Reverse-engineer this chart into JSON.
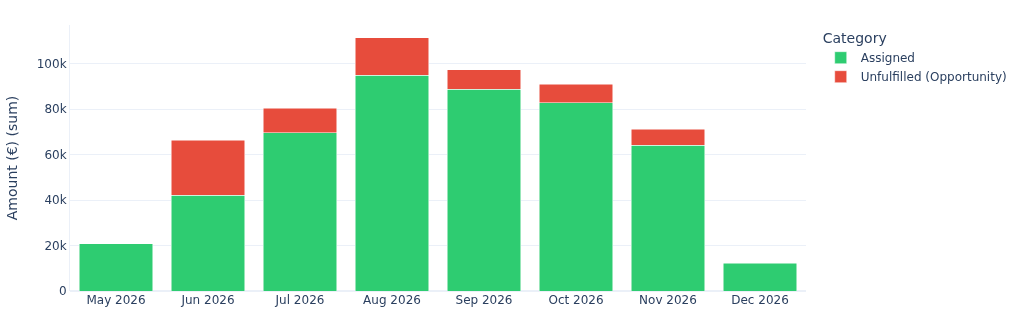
{
  "chart_data": {
    "type": "bar",
    "stacked": true,
    "ylabel": "Amount (€) (sum)",
    "legend_title": "Category",
    "legend": "right",
    "categories": [
      "May 2026",
      "Jun 2026",
      "Jul 2026",
      "Aug 2026",
      "Sep 2026",
      "Oct 2026",
      "Nov 2026",
      "Dec 2026"
    ],
    "series": [
      {
        "name": "Assigned",
        "color": "#2ecc71",
        "values": [
          20800,
          42200,
          69500,
          95000,
          88800,
          82700,
          64200,
          12300
        ]
      },
      {
        "name": "Unfulfilled (Opportunity)",
        "color": "#e74c3c",
        "values": [
          null,
          24100,
          10900,
          16300,
          8600,
          8200,
          6900,
          null
        ]
      }
    ],
    "ylim": [
      0,
      117000
    ],
    "yticks": [
      0,
      {
        "value": 20000,
        "label": "20k"
      },
      {
        "value": 40000,
        "label": "40k"
      },
      {
        "value": 60000,
        "label": "60k"
      },
      {
        "value": 80000,
        "label": "80k"
      },
      {
        "value": 100000,
        "label": "100k"
      }
    ],
    "grid": "y"
  }
}
